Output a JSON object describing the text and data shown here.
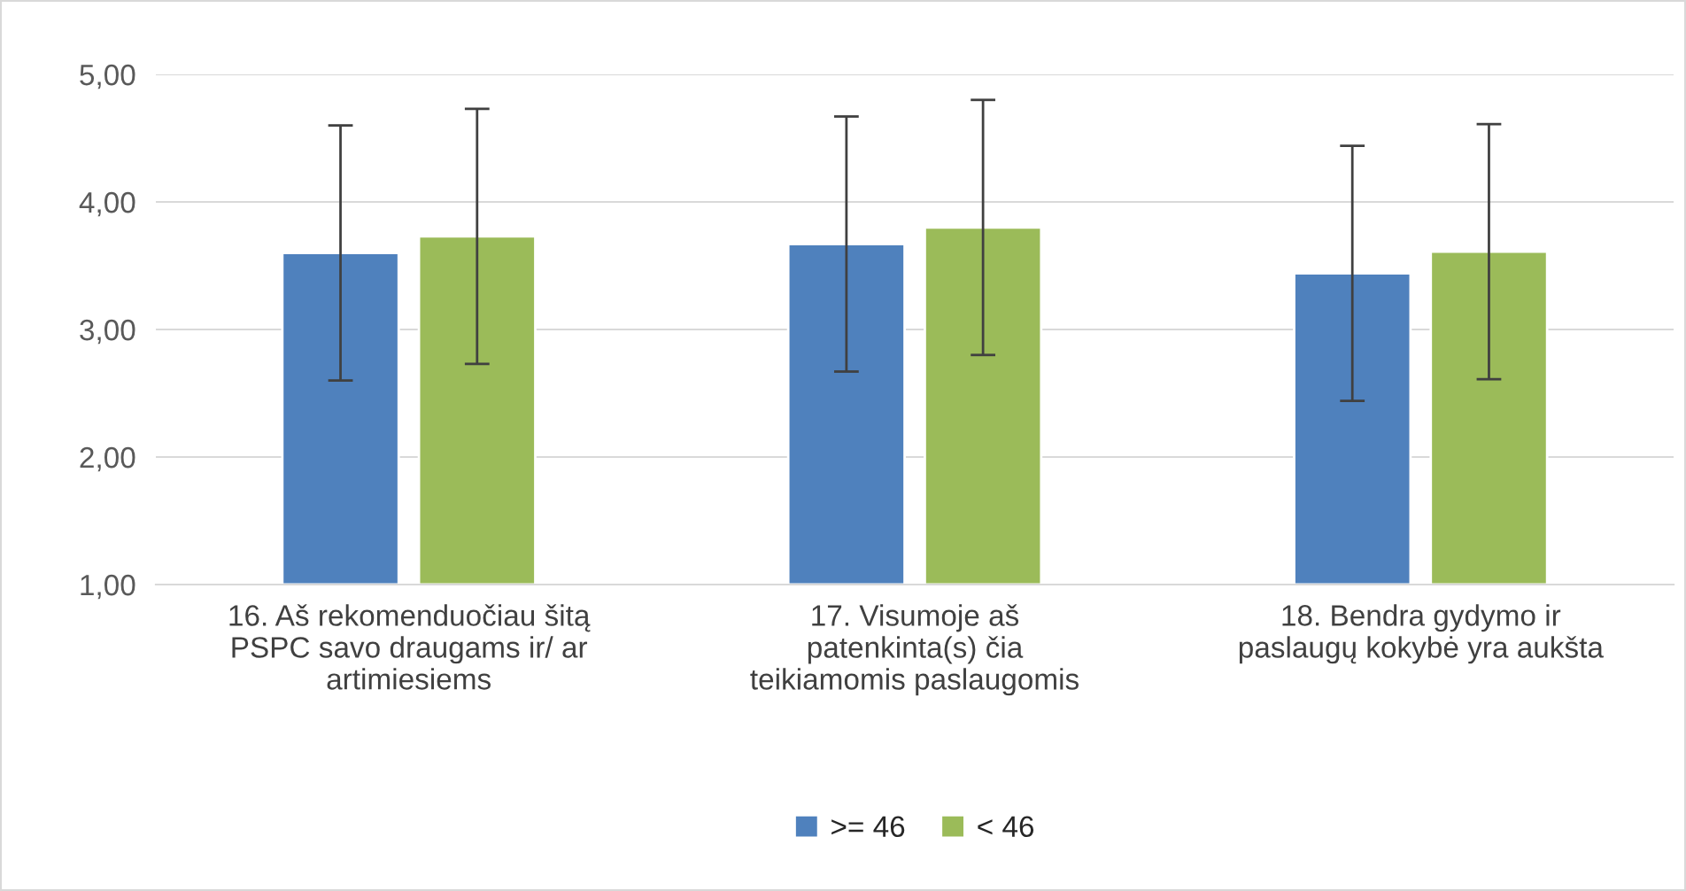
{
  "chart_data": {
    "type": "bar",
    "categories": [
      "16. Aš rekomenduočiau šitą\nPSPC savo draugams ir/ ar\nartimiesiems",
      "17. Visumoje aš\npatenkinta(s) čia\nteikiamomis paslaugomis",
      "18. Bendra gydymo ir\npaslaugų kokybė yra aukšta"
    ],
    "series": [
      {
        "name": ">= 46",
        "color": "#4f81bd",
        "values": [
          3.6,
          3.67,
          3.44
        ],
        "errors": [
          1.0,
          1.0,
          1.0
        ]
      },
      {
        "name": "< 46",
        "color": "#9bbb59",
        "values": [
          3.73,
          3.8,
          3.61
        ],
        "errors": [
          1.0,
          1.0,
          1.0
        ]
      }
    ],
    "ylim": [
      1,
      5
    ],
    "yticks": [
      {
        "value": 1,
        "label": "1,00"
      },
      {
        "value": 2,
        "label": "2,00"
      },
      {
        "value": 3,
        "label": "3,00"
      },
      {
        "value": 4,
        "label": "4,00"
      },
      {
        "value": 5,
        "label": "5,00"
      }
    ],
    "grid": "y",
    "legend": "bottom"
  }
}
